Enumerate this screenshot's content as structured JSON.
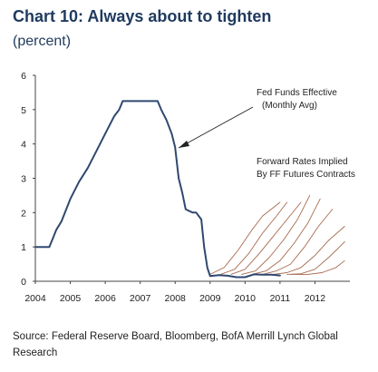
{
  "title": "Chart 10: Always about to tighten",
  "subtitle": "(percent)",
  "source": "Source: Federal Reserve Board, Bloomberg, BofA Merrill Lynch Global Research",
  "chart_data": {
    "type": "line",
    "title": "Chart 10: Always about to tighten",
    "ylabel": "(percent)",
    "xlabel": "",
    "xlim": [
      2004,
      2013
    ],
    "ylim": [
      0,
      6
    ],
    "x_ticks": [
      "2004",
      "2005",
      "2006",
      "2007",
      "2008",
      "2009",
      "2010",
      "2011",
      "2012"
    ],
    "y_ticks": [
      "0",
      "1",
      "2",
      "3",
      "4",
      "5",
      "6"
    ],
    "grid": false,
    "annotations": [
      {
        "lines": [
          "Fed Funds Effective",
          "(Monthly Avg)"
        ]
      },
      {
        "lines": [
          "Forward Rates Implied",
          "By FF Futures Contracts"
        ]
      }
    ],
    "series": [
      {
        "name": "Fed Funds Effective (Monthly Avg)",
        "color": "#2f4870",
        "x": [
          2004.0,
          2004.2,
          2004.4,
          2004.5,
          2004.6,
          2004.75,
          2005.0,
          2005.25,
          2005.5,
          2005.75,
          2006.0,
          2006.25,
          2006.4,
          2006.5,
          2006.75,
          2007.0,
          2007.25,
          2007.5,
          2007.6,
          2007.75,
          2007.9,
          2008.0,
          2008.1,
          2008.2,
          2008.3,
          2008.5,
          2008.6,
          2008.75,
          2008.83,
          2008.92,
          2009.0,
          2009.25,
          2009.5,
          2009.75,
          2010.0,
          2010.25,
          2010.5,
          2010.75,
          2011.0
        ],
        "values": [
          1.0,
          1.0,
          1.0,
          1.25,
          1.5,
          1.75,
          2.4,
          2.9,
          3.3,
          3.8,
          4.3,
          4.8,
          5.0,
          5.25,
          5.25,
          5.25,
          5.25,
          5.25,
          5.0,
          4.7,
          4.3,
          3.9,
          3.0,
          2.6,
          2.1,
          2.0,
          2.0,
          1.8,
          1.0,
          0.4,
          0.15,
          0.18,
          0.16,
          0.12,
          0.12,
          0.2,
          0.19,
          0.19,
          0.17
        ]
      },
      {
        "name": "Forward 1",
        "color": "#a86a4f",
        "x": [
          2009.0,
          2009.4,
          2009.8,
          2010.2,
          2010.5,
          2011.0
        ],
        "values": [
          0.2,
          0.4,
          0.9,
          1.5,
          1.9,
          2.3
        ]
      },
      {
        "name": "Forward 2",
        "color": "#a86a4f",
        "x": [
          2009.3,
          2009.7,
          2010.1,
          2010.5,
          2010.9,
          2011.2
        ],
        "values": [
          0.2,
          0.35,
          0.8,
          1.4,
          1.9,
          2.3
        ]
      },
      {
        "name": "Forward 3",
        "color": "#a86a4f",
        "x": [
          2009.6,
          2010.0,
          2010.4,
          2010.8,
          2011.2,
          2011.6
        ],
        "values": [
          0.2,
          0.35,
          0.8,
          1.3,
          1.8,
          2.3
        ]
      },
      {
        "name": "Forward 4",
        "color": "#a86a4f",
        "x": [
          2009.9,
          2010.3,
          2010.7,
          2011.1,
          2011.5,
          2011.85
        ],
        "values": [
          0.2,
          0.3,
          0.7,
          1.2,
          1.8,
          2.5
        ]
      },
      {
        "name": "Forward 5",
        "color": "#a86a4f",
        "x": [
          2010.2,
          2010.6,
          2011.0,
          2011.4,
          2011.8,
          2012.15
        ],
        "values": [
          0.2,
          0.3,
          0.6,
          1.1,
          1.7,
          2.4
        ]
      },
      {
        "name": "Forward 6",
        "color": "#a86a4f",
        "x": [
          2010.5,
          2010.9,
          2011.3,
          2011.7,
          2012.1,
          2012.5
        ],
        "values": [
          0.2,
          0.3,
          0.5,
          1.0,
          1.6,
          2.1
        ]
      },
      {
        "name": "Forward 7",
        "color": "#a86a4f",
        "x": [
          2010.8,
          2011.2,
          2011.6,
          2012.0,
          2012.4,
          2012.85
        ],
        "values": [
          0.2,
          0.25,
          0.4,
          0.75,
          1.2,
          1.6
        ]
      },
      {
        "name": "Forward 8",
        "color": "#a86a4f",
        "x": [
          2011.2,
          2011.6,
          2012.0,
          2012.4,
          2012.8,
          2012.85
        ],
        "values": [
          0.2,
          0.22,
          0.35,
          0.7,
          1.1,
          1.15
        ]
      },
      {
        "name": "Forward 9",
        "color": "#a86a4f",
        "x": [
          2011.3,
          2011.8,
          2012.2,
          2012.6,
          2012.85
        ],
        "values": [
          0.2,
          0.2,
          0.25,
          0.4,
          0.6
        ]
      }
    ]
  }
}
